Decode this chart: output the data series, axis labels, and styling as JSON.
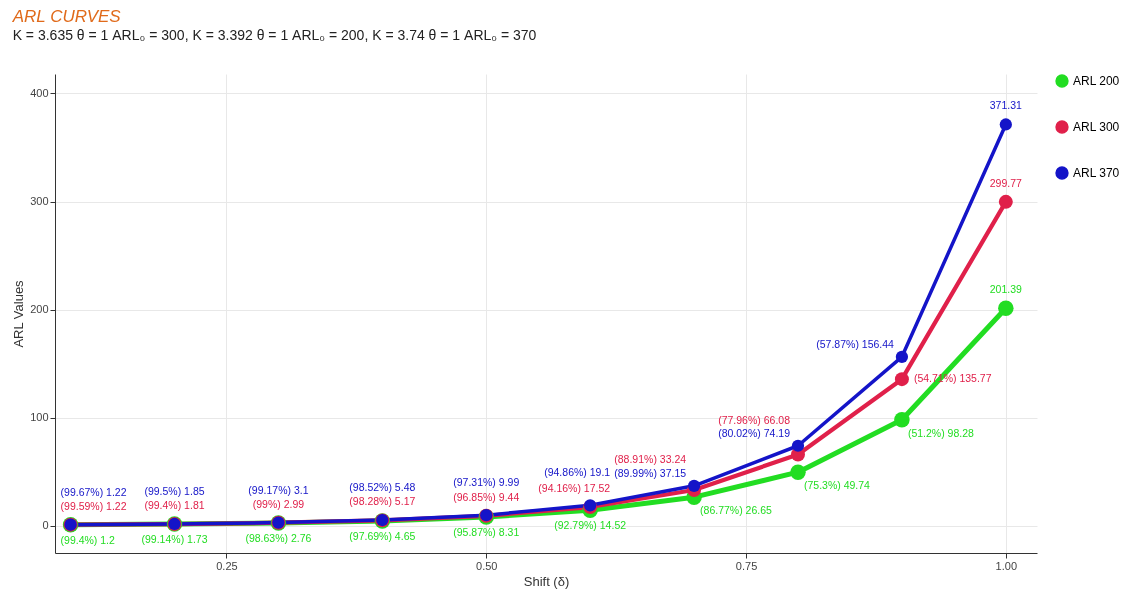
{
  "chart_data": {
    "type": "line",
    "title": "ARL CURVES",
    "subtitle": "K = 3.635  θ = 1  ARL₀ = 300, K = 3.392  θ = 1  ARL₀ = 200, K = 3.74  θ = 1  ARL₀ = 370",
    "xlabel": "Shift (δ)",
    "ylabel": "ARL Values",
    "x": [
      0.1,
      0.2,
      0.3,
      0.4,
      0.5,
      0.6,
      0.7,
      0.8,
      0.9,
      1.0
    ],
    "series": [
      {
        "name": "ARL 200",
        "color": "#22dd22",
        "values": [
          1.2,
          1.73,
          2.76,
          4.65,
          8.31,
          14.52,
          26.65,
          49.74,
          98.28,
          201.39
        ],
        "value_labels": [
          "(99.4%) 1.2",
          "(99.14%) 1.73",
          "(98.63%) 2.76",
          "(97.69%) 4.65",
          "(95.87%) 8.31",
          "(92.79%) 14.52",
          "(86.77%) 26.65",
          "(75.3%) 49.74",
          "(51.2%) 98.28",
          "201.39"
        ]
      },
      {
        "name": "ARL 300",
        "color": "#e0204a",
        "values": [
          1.22,
          1.81,
          2.99,
          5.17,
          9.44,
          17.52,
          33.24,
          66.08,
          135.77,
          299.77
        ],
        "value_labels": [
          "(99.59%) 1.22",
          "(99.4%) 1.81",
          "(99%) 2.99",
          "(98.28%) 5.17",
          "(96.85%) 9.44",
          "(94.16%) 17.52",
          "(88.91%) 33.24",
          "(77.96%) 66.08",
          "(54.71%) 135.77",
          "299.77"
        ]
      },
      {
        "name": "ARL 370",
        "color": "#1414c8",
        "values": [
          1.22,
          1.85,
          3.1,
          5.48,
          9.99,
          19.1,
          37.15,
          74.19,
          156.44,
          371.31
        ],
        "value_labels": [
          "(99.67%) 1.22",
          "(99.5%) 1.85",
          "(99.17%) 3.1",
          "(98.52%) 5.48",
          "(97.31%) 9.99",
          "(94.86%) 19.1",
          "(89.99%) 37.15",
          "(80.02%) 74.19",
          "(57.87%) 156.44",
          "371.31"
        ]
      }
    ],
    "xlim": [
      0.085,
      1.03
    ],
    "xticks": [
      {
        "value": 0.25,
        "label": "0.25"
      },
      {
        "value": 0.5,
        "label": "0.50"
      },
      {
        "value": 0.75,
        "label": "0.75"
      },
      {
        "value": 1.0,
        "label": "1.00"
      }
    ],
    "ylim": [
      -25,
      418
    ],
    "yticks": [
      0,
      100,
      200,
      300,
      400
    ],
    "grid": true,
    "legend": "right",
    "marker": "circle",
    "line_style": "solid"
  }
}
